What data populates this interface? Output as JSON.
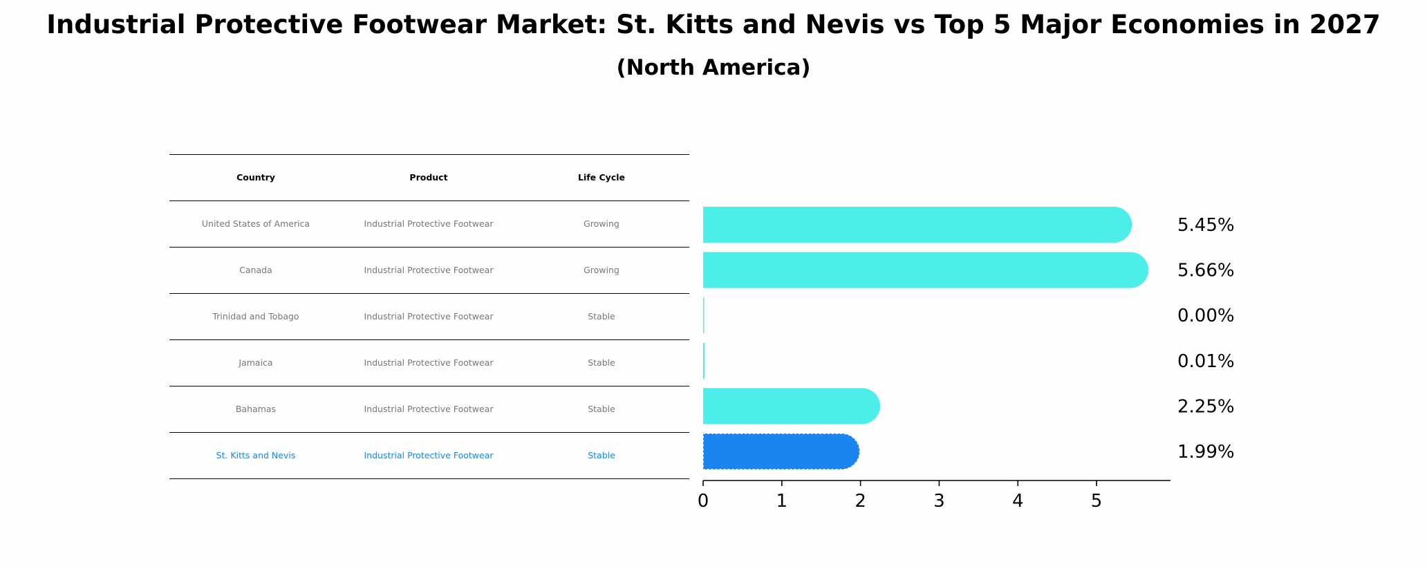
{
  "title": "Industrial Protective Footwear Market: St. Kitts and Nevis vs Top 5 Major Economies in 2027",
  "subtitle": "(North America)",
  "table": {
    "headers": [
      "Country",
      "Product",
      "Life Cycle"
    ],
    "rows": [
      {
        "country": "United States of America",
        "product": "Industrial Protective Footwear",
        "life_cycle": "Growing"
      },
      {
        "country": "Canada",
        "product": "Industrial Protective Footwear",
        "life_cycle": "Growing"
      },
      {
        "country": "Trinidad and Tobago",
        "product": "Industrial Protective Footwear",
        "life_cycle": "Stable"
      },
      {
        "country": "Jamaica",
        "product": "Industrial Protective Footwear",
        "life_cycle": "Stable"
      },
      {
        "country": "Bahamas",
        "product": "Industrial Protective Footwear",
        "life_cycle": "Stable"
      },
      {
        "country": "St. Kitts and Nevis",
        "product": "Industrial Protective Footwear",
        "life_cycle": "Stable"
      }
    ]
  },
  "colors": {
    "bar": "#4deeea",
    "highlight": "#1a85f0",
    "text_muted": "#777777"
  },
  "chart_data": {
    "type": "bar",
    "orientation": "horizontal",
    "categories": [
      "United States of America",
      "Canada",
      "Trinidad and Tobago",
      "Jamaica",
      "Bahamas",
      "St. Kitts and Nevis"
    ],
    "values": [
      5.45,
      5.66,
      0.0,
      0.01,
      2.25,
      1.99
    ],
    "value_labels": [
      "5.45%",
      "5.66%",
      "0.00%",
      "0.01%",
      "2.25%",
      "1.99%"
    ],
    "highlight_category": "St. Kitts and Nevis",
    "xlim": [
      0,
      5.94
    ],
    "xticks": [
      0,
      1,
      2,
      3,
      4,
      5
    ],
    "xlabel": "",
    "ylabel": ""
  }
}
